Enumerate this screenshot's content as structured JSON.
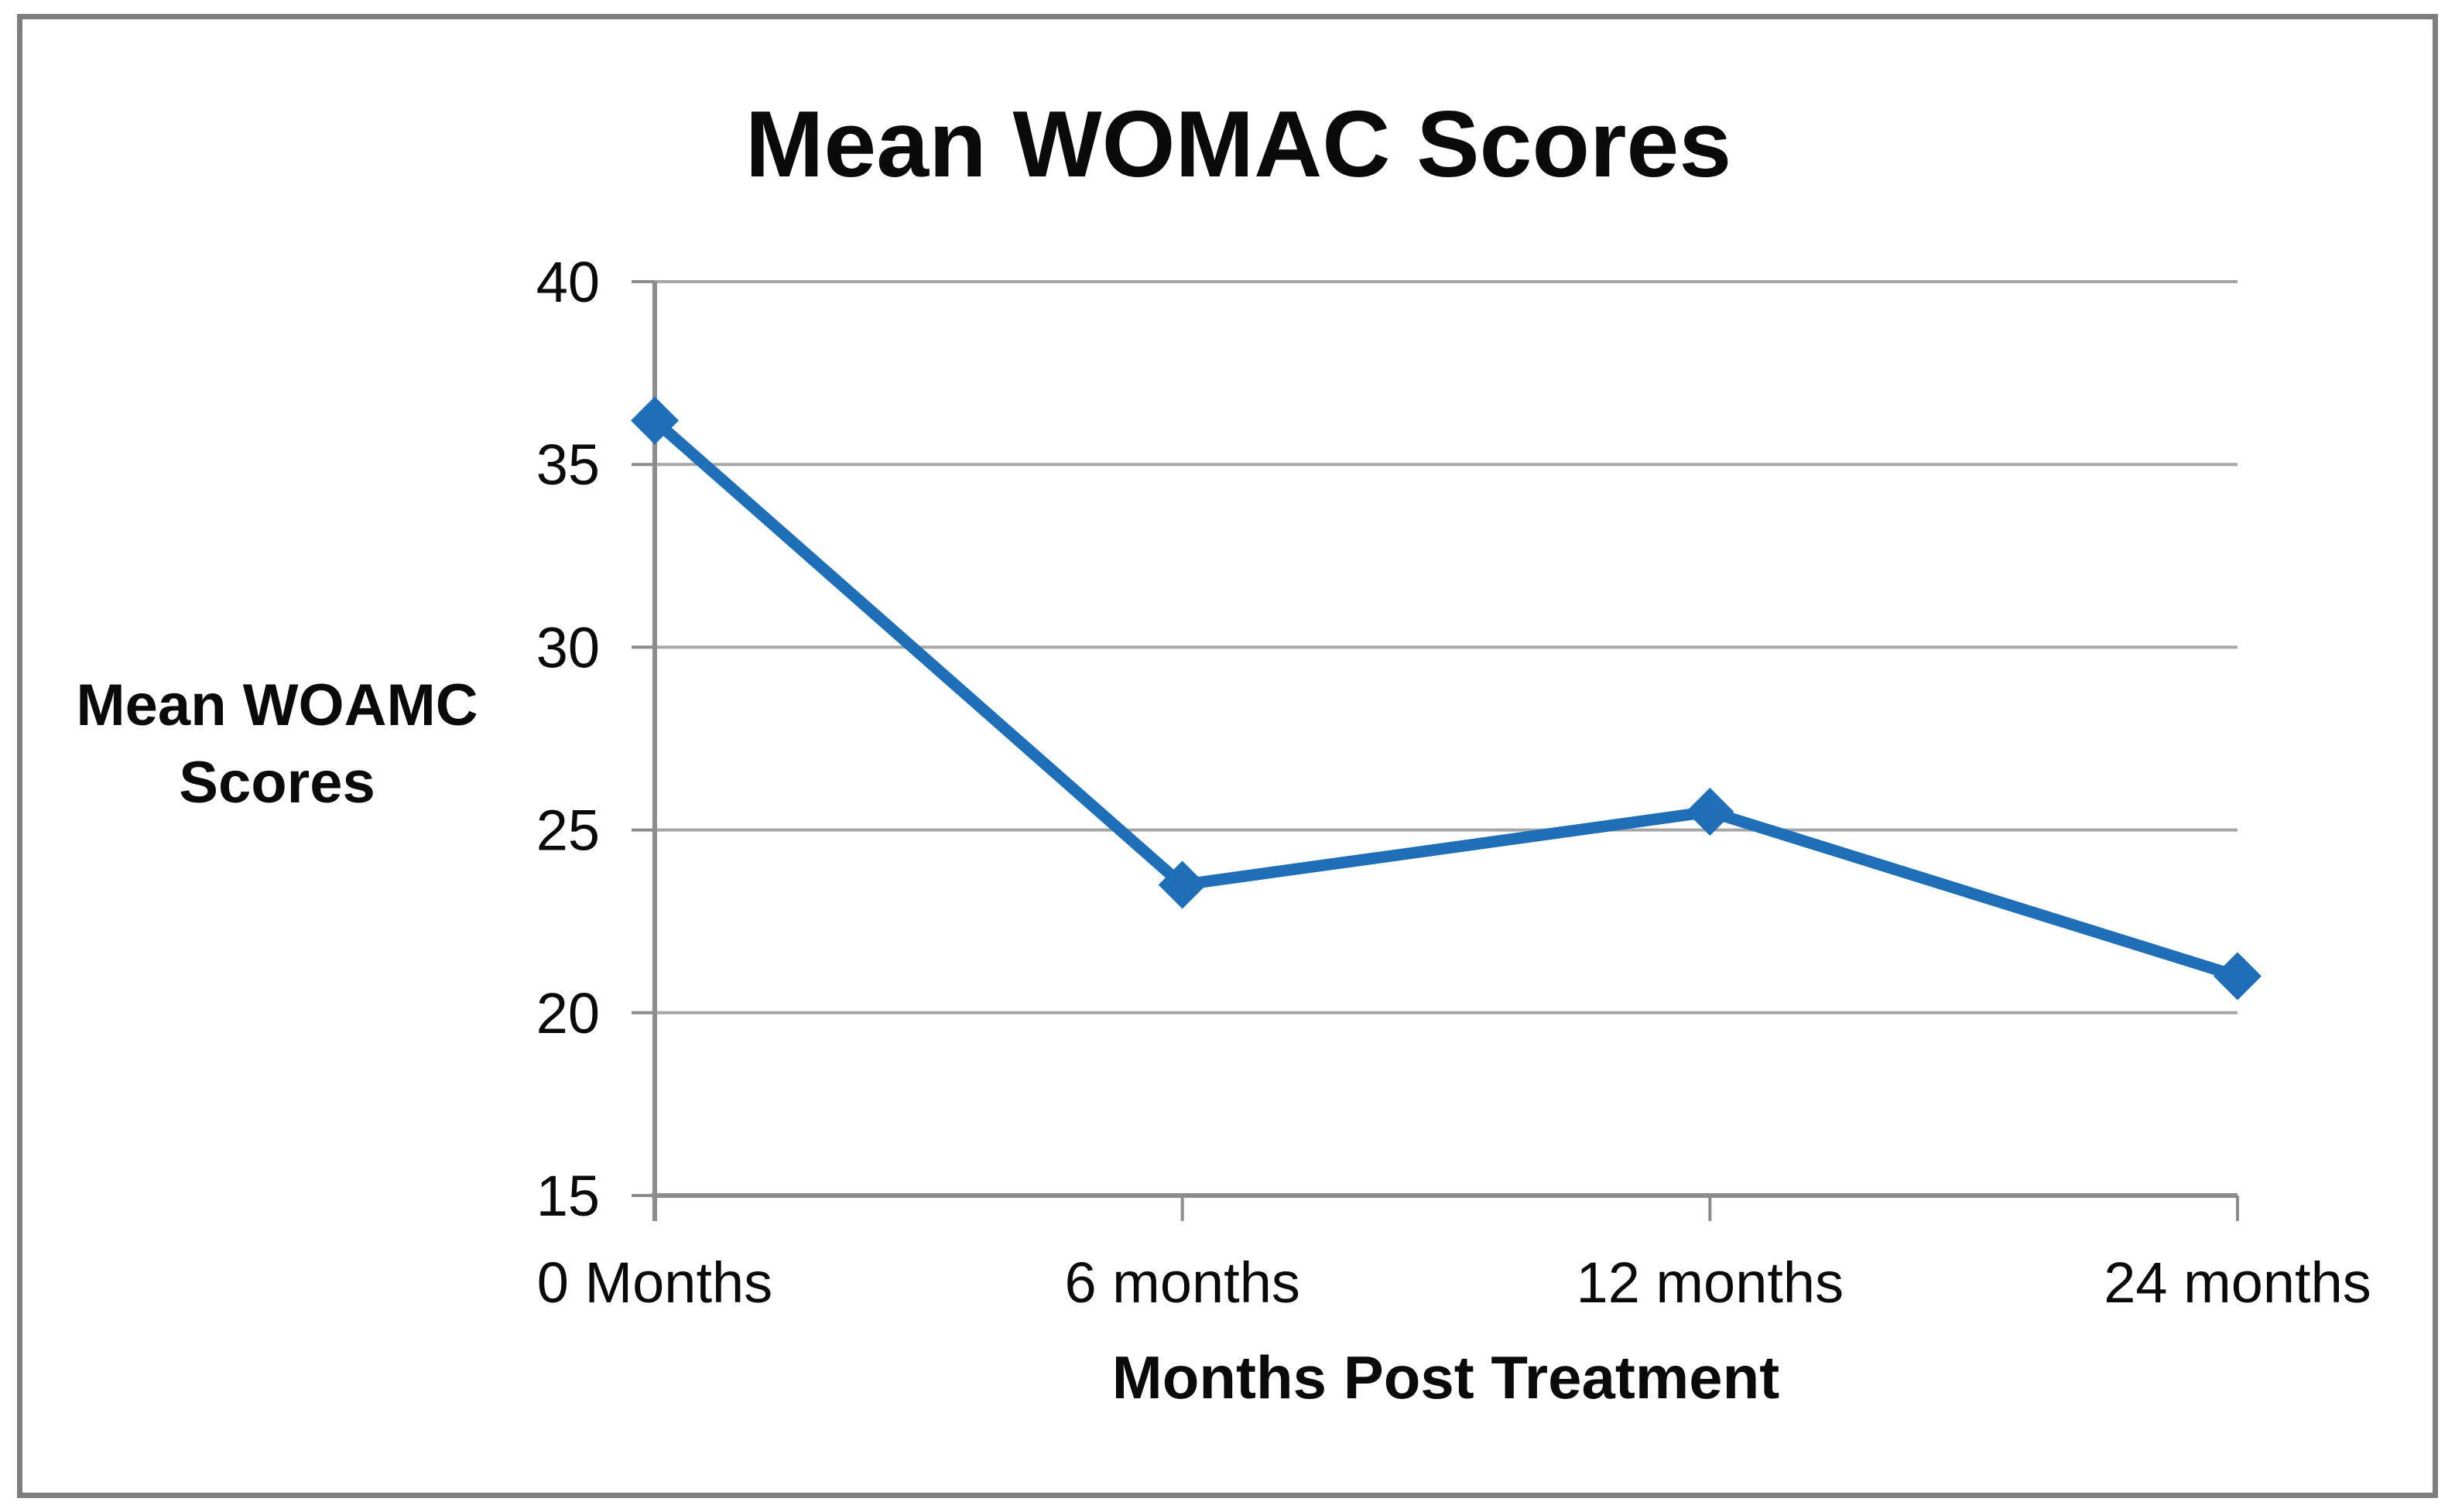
{
  "chart_data": {
    "type": "line",
    "title": "Mean WOMAC Scores",
    "xlabel": "Months Post Treatment",
    "ylabel_line1": "Mean WOAMC",
    "ylabel_line2": "Scores",
    "categories": [
      "0 Months",
      "6 months",
      "12 months",
      "24 months"
    ],
    "values": [
      36.2,
      23.5,
      25.5,
      21
    ],
    "ylim": [
      15,
      40
    ],
    "yticks": [
      15,
      20,
      25,
      30,
      35,
      40
    ],
    "ytick_labels": [
      "15",
      "20",
      "25",
      "30",
      "35",
      "40"
    ],
    "grid": true,
    "legend": "none",
    "marker": "diamond",
    "colors": {
      "line": "#1e6fb8",
      "gridline": "#a6a6a6",
      "axis": "#8c8c8c",
      "frame": "#7e7e7e",
      "text": "#0a0a0a"
    }
  }
}
